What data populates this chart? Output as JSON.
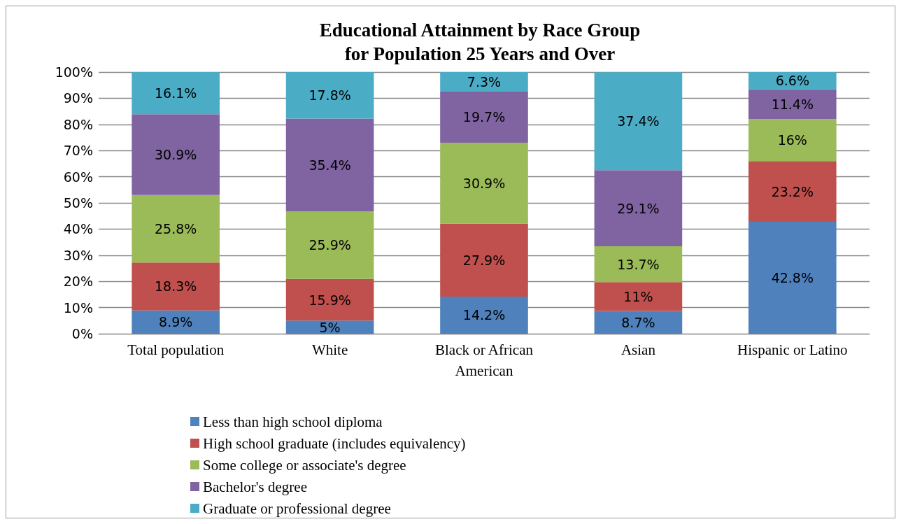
{
  "chart_data": {
    "type": "bar",
    "title": "Educational Attainment by Race Group\nfor Population 25 Years and Over",
    "categories": [
      "Total population",
      "White",
      "Black or African\nAmerican",
      "Asian",
      "Hispanic or Latino"
    ],
    "stacked": true,
    "grid": "y",
    "legend": "bottom",
    "ylim": [
      0,
      100
    ],
    "yticks": [
      {
        "value": 0,
        "label": "0%"
      },
      {
        "value": 10,
        "label": "10%"
      },
      {
        "value": 20,
        "label": "20%"
      },
      {
        "value": 30,
        "label": "30%"
      },
      {
        "value": 40,
        "label": "40%"
      },
      {
        "value": 50,
        "label": "50%"
      },
      {
        "value": 60,
        "label": "60%"
      },
      {
        "value": 70,
        "label": "70%"
      },
      {
        "value": 80,
        "label": "80%"
      },
      {
        "value": 90,
        "label": "90%"
      },
      {
        "value": 100,
        "label": "100%"
      }
    ],
    "series": [
      {
        "name": "Less than high school diploma",
        "color": "#4f81bd",
        "values": [
          8.9,
          5,
          14.2,
          8.7,
          42.8
        ],
        "value_labels": [
          "8.9%",
          "5%",
          "14.2%",
          "8.7%",
          "42.8%"
        ]
      },
      {
        "name": "High school graduate (includes equivalency)",
        "color": "#c0504d",
        "values": [
          18.3,
          15.9,
          27.9,
          11,
          23.2
        ],
        "value_labels": [
          "18.3%",
          "15.9%",
          "27.9%",
          "11%",
          "23.2%"
        ]
      },
      {
        "name": "Some college or associate's degree",
        "color": "#9bbb59",
        "values": [
          25.8,
          25.9,
          30.9,
          13.7,
          16
        ],
        "value_labels": [
          "25.8%",
          "25.9%",
          "30.9%",
          "13.7%",
          "16%"
        ]
      },
      {
        "name": "Bachelor's degree",
        "color": "#8064a2",
        "values": [
          30.9,
          35.4,
          19.7,
          29.1,
          11.4
        ],
        "value_labels": [
          "30.9%",
          "35.4%",
          "19.7%",
          "29.1%",
          "11.4%"
        ]
      },
      {
        "name": "Graduate or professional degree",
        "color": "#4bacc6",
        "values": [
          16.1,
          17.8,
          7.3,
          37.4,
          6.6
        ],
        "value_labels": [
          "16.1%",
          "17.8%",
          "7.3%",
          "37.4%",
          "6.6%"
        ]
      }
    ]
  }
}
